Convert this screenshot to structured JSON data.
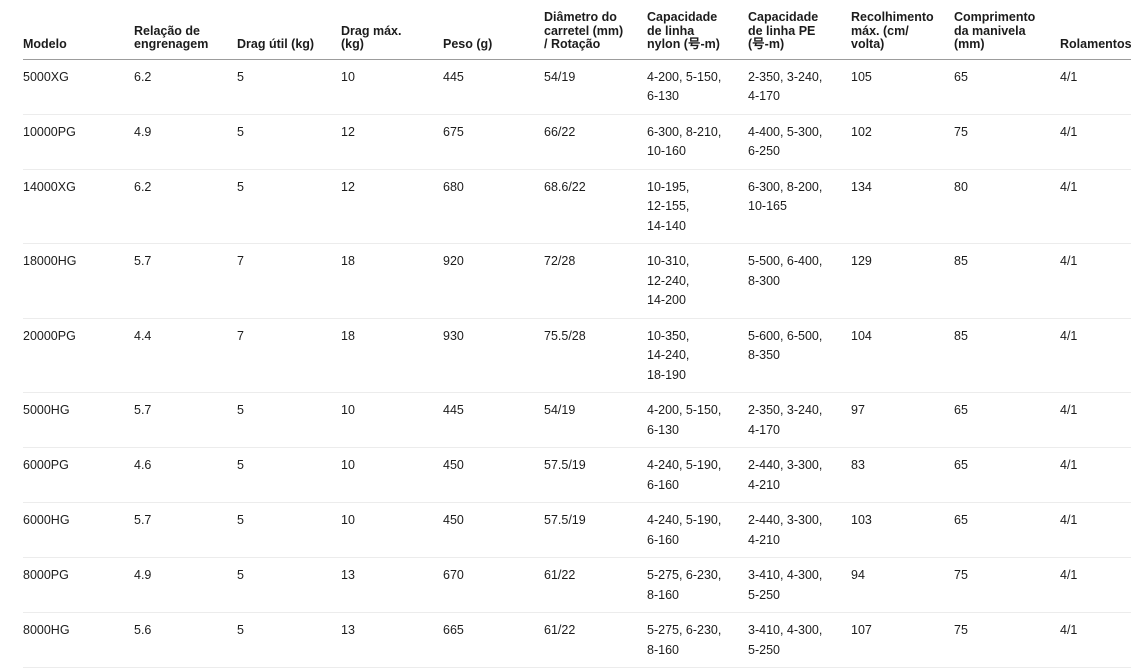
{
  "colors": {
    "background": "#ffffff",
    "text": "#1c1c1c",
    "header_border": "#9c9c9c",
    "row_border": "#ececec"
  },
  "table": {
    "columns": [
      {
        "key": "modelo",
        "label": "Modelo"
      },
      {
        "key": "relacao-engrenagem",
        "label": "Relação de\nengrenagem"
      },
      {
        "key": "drag-util",
        "label": "Drag útil (kg)"
      },
      {
        "key": "drag-max",
        "label": "Drag máx.\n(kg)"
      },
      {
        "key": "peso",
        "label": "Peso (g)"
      },
      {
        "key": "diametro-carretel",
        "label": "Diâmetro do\ncarretel (mm)\n/ Rotação"
      },
      {
        "key": "capacidade-nylon",
        "label": "Capacidade\nde linha\nnylon (号-m)"
      },
      {
        "key": "capacidade-pe",
        "label": "Capacidade\nde linha PE\n(号-m)"
      },
      {
        "key": "recolhimento-max",
        "label": "Recolhimento\nmáx. (cm/\nvolta)"
      },
      {
        "key": "comprimento-manivela",
        "label": "Comprimento\nda manivela\n(mm)"
      },
      {
        "key": "rolamentos",
        "label": "Rolamentos"
      }
    ],
    "rows": [
      [
        "5000XG",
        "6.2",
        "5",
        "10",
        "445",
        "54/19",
        "4-200, 5-150,\n6-130",
        "2-350, 3-240,\n4-170",
        "105",
        "65",
        "4/1"
      ],
      [
        "10000PG",
        "4.9",
        "5",
        "12",
        "675",
        "66/22",
        "6-300, 8-210,\n10-160",
        "4-400, 5-300,\n6-250",
        "102",
        "75",
        "4/1"
      ],
      [
        "14000XG",
        "6.2",
        "5",
        "12",
        "680",
        "68.6/22",
        "10-195,\n12-155,\n14-140",
        "6-300, 8-200,\n10-165",
        "134",
        "80",
        "4/1"
      ],
      [
        "18000HG",
        "5.7",
        "7",
        "18",
        "920",
        "72/28",
        "10-310,\n12-240,\n14-200",
        "5-500, 6-400,\n8-300",
        "129",
        "85",
        "4/1"
      ],
      [
        "20000PG",
        "4.4",
        "7",
        "18",
        "930",
        "75.5/28",
        "10-350,\n14-240,\n18-190",
        "5-600, 6-500,\n8-350",
        "104",
        "85",
        "4/1"
      ],
      [
        "5000HG",
        "5.7",
        "5",
        "10",
        "445",
        "54/19",
        "4-200, 5-150,\n6-130",
        "2-350, 3-240,\n4-170",
        "97",
        "65",
        "4/1"
      ],
      [
        "6000PG",
        "4.6",
        "5",
        "10",
        "450",
        "57.5/19",
        "4-240, 5-190,\n6-160",
        "2-440, 3-300,\n4-210",
        "83",
        "65",
        "4/1"
      ],
      [
        "6000HG",
        "5.7",
        "5",
        "10",
        "450",
        "57.5/19",
        "4-240, 5-190,\n6-160",
        "2-440, 3-300,\n4-210",
        "103",
        "65",
        "4/1"
      ],
      [
        "8000PG",
        "4.9",
        "5",
        "13",
        "670",
        "61/22",
        "5-275, 6-230,\n8-160",
        "3-410, 4-300,\n5-250",
        "94",
        "75",
        "4/1"
      ],
      [
        "8000HG",
        "5.6",
        "5",
        "13",
        "665",
        "61/22",
        "5-275, 6-230,\n8-160",
        "3-410, 4-300,\n5-250",
        "107",
        "75",
        "4/1"
      ]
    ]
  }
}
